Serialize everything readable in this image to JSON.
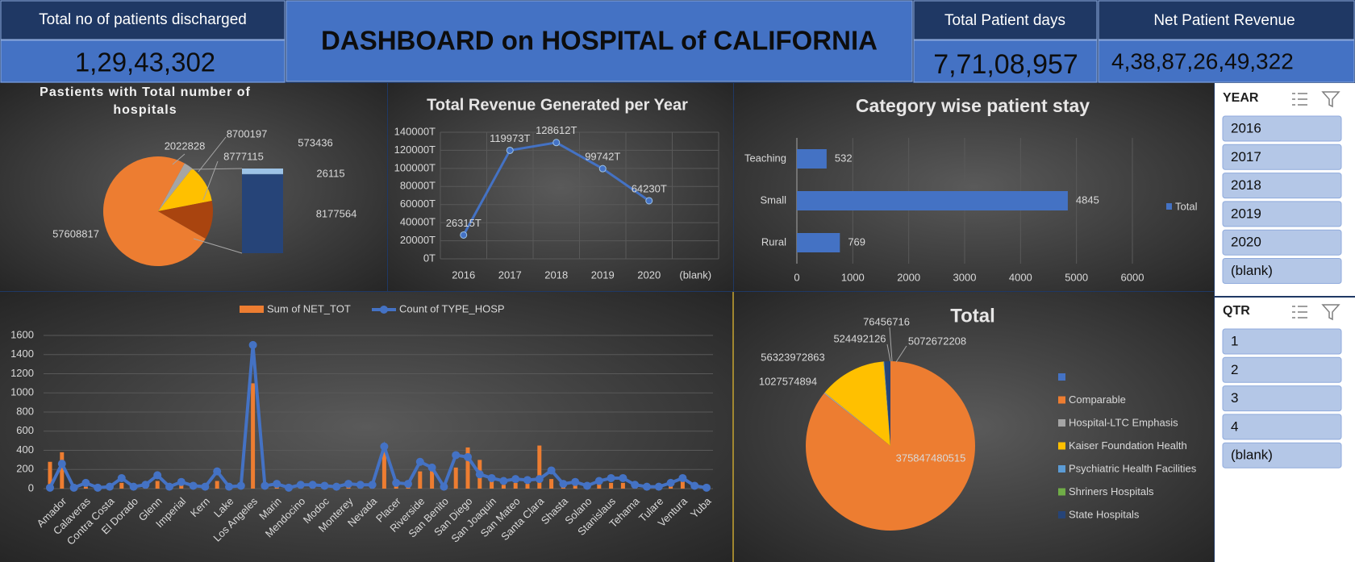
{
  "title": "DASHBOARD on HOSPITAL of CALIFORNIA",
  "kpis": [
    {
      "label": "Total no of patients discharged",
      "value": "1,29,43,302"
    },
    {
      "label": "Total Patient days",
      "value": "7,71,08,957"
    },
    {
      "label": "Net Patient Revenue",
      "value": "4,38,87,26,49,322"
    }
  ],
  "chart_data": [
    {
      "type": "pie",
      "title": "Pastients with Total number of hospitals",
      "values": [
        57608817,
        2022828,
        8700197,
        8777115
      ],
      "colors": [
        "#ed7d31",
        "#a5a5a5",
        "#ffc000",
        "#a9440f"
      ],
      "bar_values": [
        8177564,
        26115,
        573436
      ],
      "bar_colors": [
        "#264478",
        "#5b9bd5",
        "#9dc3e6"
      ]
    },
    {
      "type": "line",
      "title": "Total Revenue Generated per Year",
      "categories": [
        "2016",
        "2017",
        "2018",
        "2019",
        "2020",
        "(blank)"
      ],
      "values": [
        26315,
        119973,
        128612,
        99742,
        64230,
        null
      ],
      "value_labels": [
        "26315T",
        "119973T",
        "128612T",
        "99742T",
        "64230T",
        null
      ],
      "color": "#4472c4",
      "ylim": [
        0,
        140000
      ],
      "yticks": [
        {
          "value": 0,
          "label": "0T"
        },
        {
          "value": 20000,
          "label": "20000T"
        },
        {
          "value": 40000,
          "label": "40000T"
        },
        {
          "value": 60000,
          "label": "60000T"
        },
        {
          "value": 80000,
          "label": "80000T"
        },
        {
          "value": 100000,
          "label": "100000T"
        },
        {
          "value": 120000,
          "label": "120000T"
        },
        {
          "value": 140000,
          "label": "140000T"
        }
      ],
      "grid": true
    },
    {
      "type": "bar",
      "orientation": "horizontal",
      "title": "Category wise patient stay",
      "categories": [
        "Teaching",
        "Small",
        "Rural"
      ],
      "series": [
        {
          "name": "Total",
          "color": "#4472c4",
          "values": [
            532,
            4845,
            769
          ]
        }
      ],
      "xlim": [
        0,
        6000
      ],
      "xticks": [
        0,
        1000,
        2000,
        3000,
        4000,
        5000,
        6000
      ],
      "grid": true
    },
    {
      "type": "combo",
      "categories": [
        null,
        "Amador",
        null,
        "Calaveras",
        null,
        "Contra Costa",
        null,
        "El Dorado",
        null,
        "Glenn",
        null,
        "Imperial",
        null,
        "Kern",
        null,
        "Lake",
        null,
        "Los Angeles",
        null,
        "Marin",
        null,
        "Mendocino",
        null,
        "Modoc",
        null,
        "Monterey",
        null,
        "Nevada",
        null,
        "Placer",
        null,
        "Riverside",
        null,
        "San Benito",
        null,
        "San Diego",
        null,
        "San Joaquin",
        null,
        "San Mateo",
        null,
        "Santa Clara",
        null,
        "Shasta",
        null,
        "Solano",
        null,
        "Stanislaus",
        null,
        "Tehama",
        null,
        "Tulare",
        null,
        "Ventura",
        null,
        "Yuba"
      ],
      "series": [
        {
          "name": "Sum of NET_TOT",
          "type": "bar",
          "color": "#ed7d31",
          "values": [
            280,
            380,
            5,
            20,
            5,
            10,
            60,
            10,
            20,
            80,
            10,
            40,
            10,
            10,
            80,
            5,
            10,
            1100,
            10,
            30,
            5,
            20,
            20,
            10,
            10,
            30,
            20,
            20,
            400,
            40,
            30,
            180,
            200,
            10,
            220,
            430,
            300,
            80,
            40,
            60,
            50,
            450,
            100,
            20,
            40,
            10,
            50,
            60,
            60,
            20,
            10,
            10,
            30,
            100,
            20,
            5
          ]
        },
        {
          "name": "Count of TYPE_HOSP",
          "type": "line",
          "color": "#4472c4",
          "values": [
            10,
            260,
            10,
            60,
            10,
            20,
            110,
            20,
            40,
            140,
            20,
            70,
            30,
            20,
            180,
            20,
            30,
            1500,
            30,
            50,
            10,
            40,
            40,
            30,
            20,
            50,
            40,
            40,
            440,
            60,
            50,
            280,
            220,
            20,
            350,
            330,
            150,
            110,
            80,
            100,
            90,
            100,
            190,
            50,
            70,
            30,
            80,
            110,
            110,
            40,
            20,
            20,
            60,
            110,
            30,
            10
          ]
        }
      ],
      "ylim": [
        0,
        1600
      ],
      "yticks": [
        0,
        200,
        400,
        600,
        800,
        1000,
        1200,
        1400,
        1600
      ],
      "grid": true
    },
    {
      "type": "pie",
      "title": "Total",
      "categories": [
        null,
        "Comparable",
        "Hospital-LTC Emphasis",
        "Kaiser Foundation Health",
        "Psychiatric Health Facilities",
        "Shriners Hospitals",
        "State Hospitals"
      ],
      "values": [
        null,
        375847480515,
        1027574894,
        56323972863,
        524492126,
        76456716,
        5072672208
      ],
      "colors": [
        "#4472c4",
        "#ed7d31",
        "#a5a5a5",
        "#ffc000",
        "#5b9bd5",
        "#70ad47",
        "#264478"
      ]
    }
  ],
  "slicers": [
    {
      "title": "YEAR",
      "items": [
        "2016",
        "2017",
        "2018",
        "2019",
        "2020",
        "(blank)"
      ]
    },
    {
      "title": "QTR",
      "items": [
        "1",
        "2",
        "3",
        "4",
        "(blank)"
      ]
    }
  ]
}
